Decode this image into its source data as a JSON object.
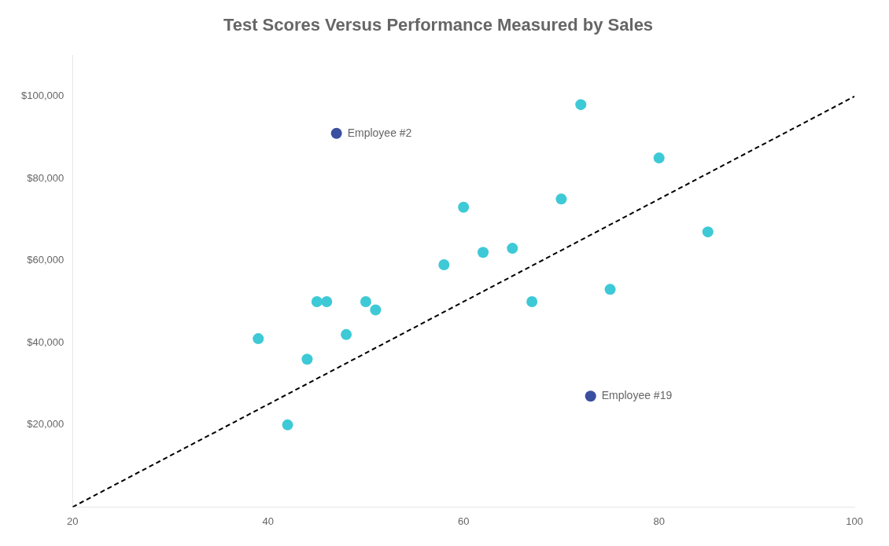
{
  "chart_data": {
    "type": "scatter",
    "title": "Test Scores Versus Performance Measured by Sales",
    "xlim": [
      20,
      100
    ],
    "ylim": [
      0,
      110000
    ],
    "xticks": [
      20,
      40,
      60,
      80,
      100
    ],
    "yticks": [
      {
        "value": 20000,
        "label": "$20,000"
      },
      {
        "value": 40000,
        "label": "$40,000"
      },
      {
        "value": 60000,
        "label": "$60,000"
      },
      {
        "value": 80000,
        "label": "$80,000"
      },
      {
        "value": 100000,
        "label": "$100,000"
      }
    ],
    "grid": false,
    "series": [
      {
        "type": "line",
        "line_style": "dashed",
        "color": "#000000",
        "x": [
          20,
          100
        ],
        "values": [
          0,
          100000
        ]
      },
      {
        "type": "scatter",
        "color": "#3ec9d6",
        "x": [
          39,
          42,
          44,
          45,
          46,
          48,
          50,
          51,
          58,
          60,
          62,
          65,
          67,
          70,
          72,
          75,
          80,
          85
        ],
        "values": [
          41000,
          20000,
          36000,
          50000,
          50000,
          42000,
          50000,
          48000,
          59000,
          73000,
          62000,
          63000,
          50000,
          75000,
          98000,
          53000,
          85000,
          67000
        ]
      },
      {
        "type": "scatter",
        "color": "#3a4fa0",
        "x": [
          47,
          73
        ],
        "values": [
          91000,
          27000
        ]
      }
    ],
    "annotations": [
      {
        "text": "Employee #2",
        "x": 47,
        "y": 91000
      },
      {
        "text": "Employee #19",
        "x": 73,
        "y": 27000
      }
    ]
  }
}
